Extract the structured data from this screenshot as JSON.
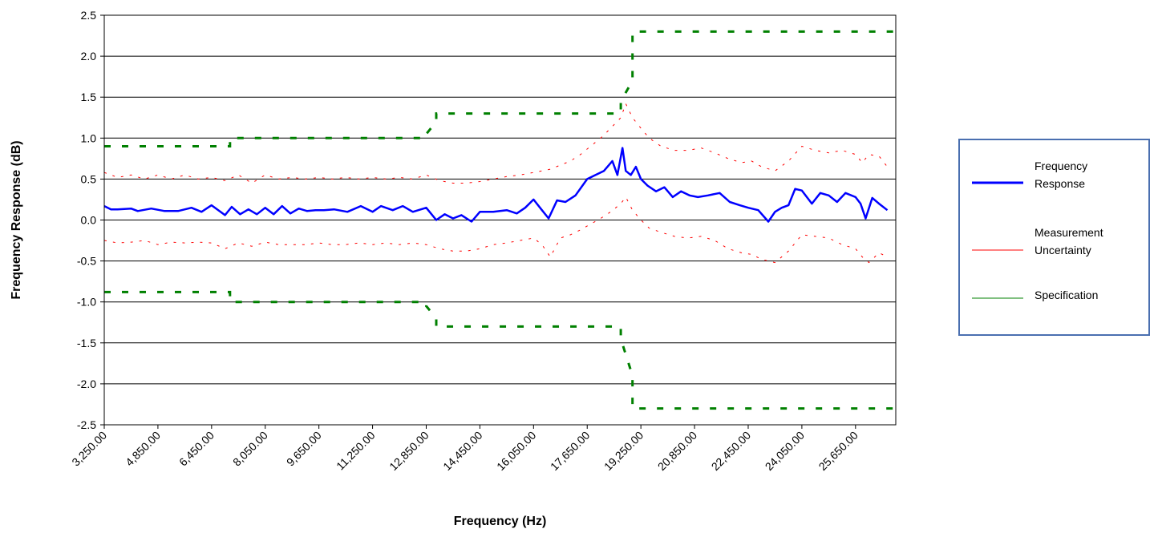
{
  "chart_data": {
    "type": "line",
    "title": "",
    "xlabel": "Frequency (Hz)",
    "ylabel": "Frequency Response (dB)",
    "xlim": [
      3250,
      26850
    ],
    "ylim": [
      -2.5,
      2.5
    ],
    "y_ticks": [
      "2.5",
      "2.0",
      "1.5",
      "1.0",
      "0.5",
      "0.0",
      "-0.5",
      "-1.0",
      "-1.5",
      "-2.0",
      "-2.5"
    ],
    "x_ticks": [
      "3,250.00",
      "4,850.00",
      "6,450.00",
      "8,050.00",
      "9,650.00",
      "11,250.00",
      "12,850.00",
      "14,450.00",
      "16,050.00",
      "17,650.00",
      "19,250.00",
      "20,850.00",
      "22,450.00",
      "24,050.00",
      "25,650.00"
    ],
    "grid": "horizontal",
    "legend_position": "right",
    "legend": [
      "Frequency Response",
      "Measurement Uncertainty",
      "Specification"
    ],
    "series": [
      {
        "name": "Frequency Response",
        "color": "#0000ff",
        "style": "solid",
        "x": [
          3250,
          3450,
          3650,
          4050,
          4250,
          4650,
          5050,
          5450,
          5850,
          6150,
          6450,
          6850,
          7050,
          7300,
          7550,
          7800,
          8050,
          8300,
          8550,
          8800,
          9050,
          9300,
          9550,
          9800,
          10100,
          10500,
          10900,
          11250,
          11500,
          11850,
          12150,
          12450,
          12850,
          13150,
          13400,
          13650,
          13900,
          14200,
          14450,
          14850,
          15250,
          15550,
          15800,
          16050,
          16300,
          16500,
          16750,
          17000,
          17300,
          17650,
          17900,
          18150,
          18400,
          18550,
          18700,
          18800,
          18950,
          19100,
          19250,
          19450,
          19700,
          19950,
          20200,
          20450,
          20700,
          20950,
          21250,
          21600,
          21900,
          22200,
          22450,
          22750,
          23050,
          23250,
          23450,
          23650,
          23850,
          24050,
          24350,
          24600,
          24850,
          25100,
          25350,
          25650,
          25800,
          25950,
          26150,
          26350,
          26600
        ],
        "y": [
          0.17,
          0.13,
          0.13,
          0.14,
          0.11,
          0.14,
          0.11,
          0.11,
          0.15,
          0.1,
          0.18,
          0.06,
          0.16,
          0.07,
          0.13,
          0.07,
          0.15,
          0.07,
          0.17,
          0.08,
          0.14,
          0.11,
          0.12,
          0.12,
          0.13,
          0.1,
          0.17,
          0.1,
          0.17,
          0.12,
          0.17,
          0.1,
          0.15,
          0.0,
          0.07,
          0.02,
          0.06,
          -0.02,
          0.1,
          0.1,
          0.12,
          0.08,
          0.15,
          0.25,
          0.12,
          0.02,
          0.24,
          0.22,
          0.3,
          0.5,
          0.55,
          0.6,
          0.72,
          0.55,
          0.88,
          0.6,
          0.55,
          0.65,
          0.5,
          0.42,
          0.35,
          0.4,
          0.28,
          0.35,
          0.3,
          0.28,
          0.3,
          0.33,
          0.22,
          0.18,
          0.15,
          0.12,
          -0.02,
          0.1,
          0.15,
          0.18,
          0.38,
          0.36,
          0.2,
          0.33,
          0.3,
          0.22,
          0.33,
          0.28,
          0.2,
          0.02,
          0.27,
          0.2,
          0.12
        ]
      },
      {
        "name": "Measurement Uncertainty",
        "color": "#ff0000",
        "style": "dotted",
        "x": [
          3250,
          3650,
          4050,
          4450,
          4850,
          5250,
          5650,
          6050,
          6450,
          6850,
          7250,
          7650,
          8050,
          8450,
          8850,
          9250,
          9650,
          10050,
          10450,
          10850,
          11250,
          11650,
          12050,
          12450,
          12850,
          13250,
          13650,
          14050,
          14450,
          14850,
          15250,
          15650,
          16050,
          16300,
          16550,
          16850,
          17150,
          17450,
          17750,
          18050,
          18350,
          18650,
          18800,
          19000,
          19250,
          19500,
          19850,
          20250,
          20650,
          21050,
          21450,
          21850,
          22250,
          22550,
          22850,
          23250,
          23650,
          24050,
          24450,
          24850,
          25250,
          25650,
          25850,
          26050,
          26350,
          26600
        ],
        "y": [
          0.58,
          0.52,
          0.55,
          0.5,
          0.55,
          0.5,
          0.55,
          0.5,
          0.52,
          0.48,
          0.55,
          0.45,
          0.55,
          0.5,
          0.52,
          0.5,
          0.52,
          0.5,
          0.52,
          0.5,
          0.52,
          0.5,
          0.52,
          0.5,
          0.55,
          0.48,
          0.45,
          0.45,
          0.47,
          0.5,
          0.53,
          0.55,
          0.58,
          0.6,
          0.62,
          0.67,
          0.72,
          0.8,
          0.9,
          1.0,
          1.12,
          1.25,
          1.42,
          1.25,
          1.12,
          1.0,
          0.9,
          0.85,
          0.85,
          0.88,
          0.82,
          0.75,
          0.7,
          0.72,
          0.65,
          0.6,
          0.72,
          0.9,
          0.85,
          0.82,
          0.85,
          0.8,
          0.7,
          0.8,
          0.78,
          0.65
        ],
        "y2": [
          -0.25,
          -0.28,
          -0.27,
          -0.25,
          -0.3,
          -0.27,
          -0.28,
          -0.27,
          -0.28,
          -0.35,
          -0.28,
          -0.32,
          -0.27,
          -0.3,
          -0.3,
          -0.3,
          -0.28,
          -0.3,
          -0.3,
          -0.28,
          -0.3,
          -0.28,
          -0.3,
          -0.28,
          -0.3,
          -0.35,
          -0.38,
          -0.38,
          -0.35,
          -0.3,
          -0.28,
          -0.25,
          -0.22,
          -0.3,
          -0.45,
          -0.22,
          -0.18,
          -0.12,
          -0.05,
          0.02,
          0.1,
          0.2,
          0.28,
          0.12,
          0.0,
          -0.1,
          -0.15,
          -0.2,
          -0.22,
          -0.2,
          -0.25,
          -0.35,
          -0.4,
          -0.42,
          -0.48,
          -0.52,
          -0.38,
          -0.18,
          -0.2,
          -0.22,
          -0.3,
          -0.35,
          -0.45,
          -0.52,
          -0.4,
          -0.45
        ]
      },
      {
        "name": "Specification",
        "color": "#008000",
        "style": "dashed",
        "upper": {
          "x": [
            3250,
            7000,
            7000,
            12850,
            12850,
            13150,
            13150,
            18650,
            18650,
            19000,
            19000,
            26850
          ],
          "y": [
            0.9,
            0.9,
            1.0,
            1.0,
            1.05,
            1.2,
            1.3,
            1.3,
            1.45,
            1.7,
            2.3,
            2.3
          ]
        },
        "lower": {
          "x": [
            3250,
            7000,
            7000,
            12850,
            12850,
            13150,
            13150,
            18650,
            18650,
            19000,
            19000,
            26850
          ],
          "y": [
            -0.88,
            -0.88,
            -1.0,
            -1.0,
            -1.05,
            -1.2,
            -1.3,
            -1.3,
            -1.45,
            -1.9,
            -2.3,
            -2.3
          ]
        }
      }
    ]
  }
}
